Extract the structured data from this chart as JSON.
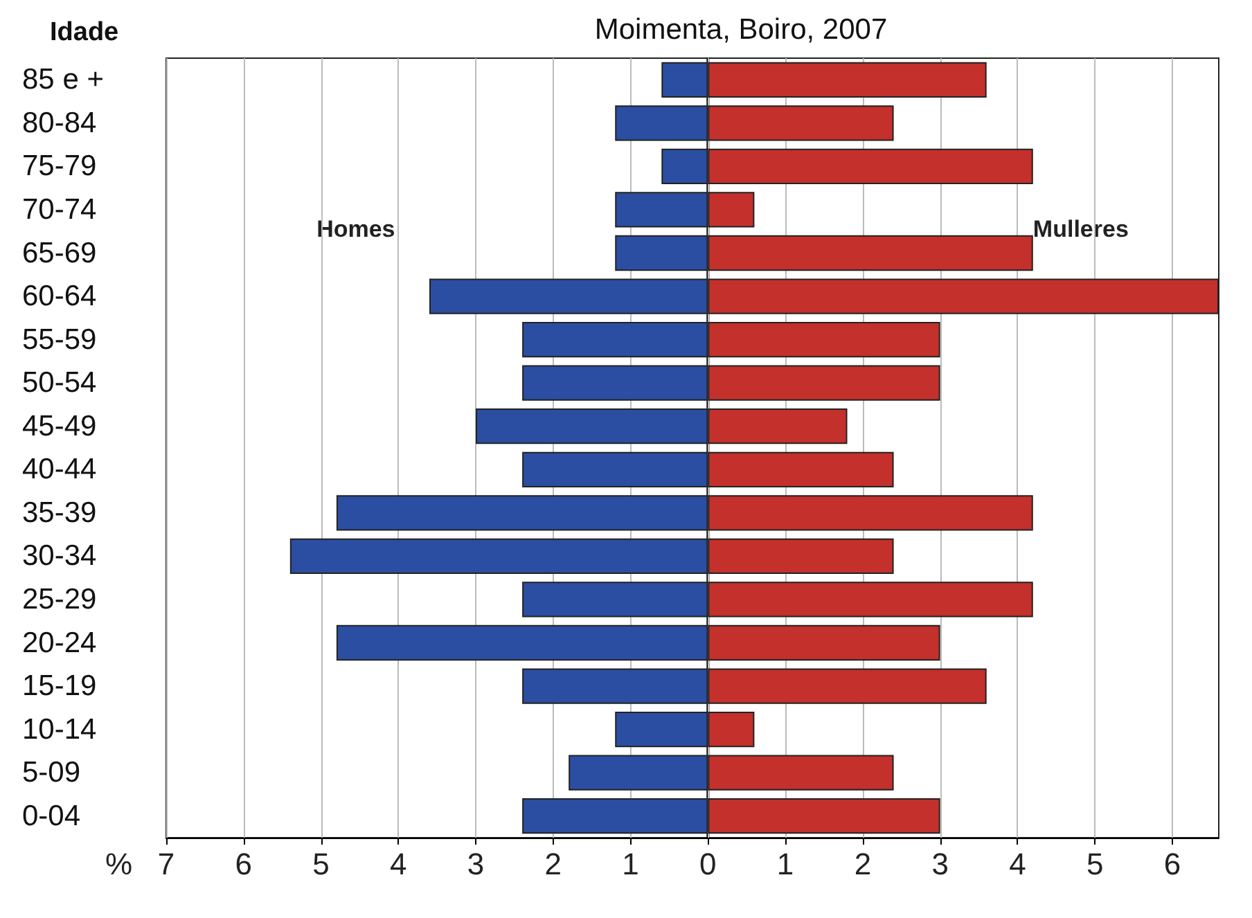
{
  "chart_data": {
    "type": "bar",
    "orientation": "horizontal",
    "stacked": true,
    "title": "Moimenta, Boiro, 2007",
    "ylabel": "Idade",
    "xlabel": "%",
    "categories": [
      "85 e +",
      "80-84",
      "75-79",
      "70-74",
      "65-69",
      "60-64",
      "55-59",
      "50-54",
      "45-49",
      "40-44",
      "35-39",
      "30-34",
      "25-29",
      "20-24",
      "15-19",
      "10-14",
      "5-09",
      "0-04"
    ],
    "series": [
      {
        "name": "Homes",
        "color": "#2b4ea2",
        "values": [
          -0.6,
          -1.2,
          -0.6,
          -1.2,
          -1.2,
          -3.6,
          -2.4,
          -2.4,
          -3.0,
          -2.4,
          -4.8,
          -5.4,
          -2.4,
          -4.8,
          -2.4,
          -1.2,
          -1.8,
          -2.4
        ]
      },
      {
        "name": "Mulleres",
        "color": "#c4302b",
        "values": [
          3.6,
          2.4,
          4.2,
          0.6,
          4.2,
          6.6,
          3.0,
          3.0,
          1.8,
          2.4,
          4.2,
          2.4,
          4.2,
          3.0,
          3.6,
          0.6,
          2.4,
          3.0
        ]
      }
    ],
    "xlim": [
      -7,
      6.6
    ],
    "xticks": [
      {
        "value": -7,
        "label": "7"
      },
      {
        "value": -6,
        "label": "6"
      },
      {
        "value": -5,
        "label": "5"
      },
      {
        "value": -4,
        "label": "4"
      },
      {
        "value": -3,
        "label": "3"
      },
      {
        "value": -2,
        "label": "2"
      },
      {
        "value": -1,
        "label": "1"
      },
      0,
      1,
      2,
      3,
      4,
      5,
      6
    ],
    "grid": "x",
    "legend": false
  }
}
